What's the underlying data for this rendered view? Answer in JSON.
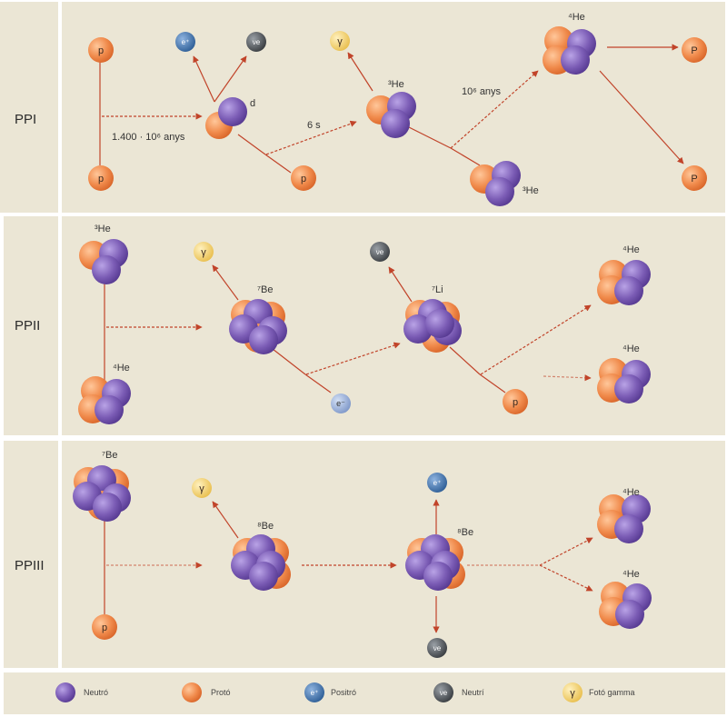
{
  "chains": {
    "ppi": {
      "label": "PPI",
      "p1": "p",
      "p2": "p",
      "p3": "p",
      "time1": "1.400 · 10⁶ anys",
      "time2": "6 s",
      "time3": "10⁶ anys",
      "d": "d",
      "he3_a": "³He",
      "he3_b": "³He",
      "he4": "⁴He",
      "e_plus": "e⁺",
      "nu": "νe",
      "gamma": "γ",
      "p_out1": "P",
      "p_out2": "P"
    },
    "ppii": {
      "label": "PPII",
      "he3": "³He",
      "he4_in": "⁴He",
      "be7": "⁷Be",
      "li7": "⁷Li",
      "gamma": "γ",
      "nu": "νe",
      "e_minus": "e⁻",
      "p": "p",
      "he4_out1": "⁴He",
      "he4_out2": "⁴He"
    },
    "ppiii": {
      "label": "PPIII",
      "be7": "⁷Be",
      "p": "p",
      "b8": "⁸Be",
      "be8": "⁸Be",
      "gamma": "γ",
      "e_plus": "e⁺",
      "nu": "νe",
      "he4_out1": "⁴He",
      "he4_out2": "⁴He"
    }
  },
  "legend": {
    "neutron": "Neutró",
    "proton": "Protó",
    "positron": "Positró",
    "neutrino": "Neutrí",
    "photon": "Fotó gamma"
  },
  "colors": {
    "proton": "#f08a4b",
    "neutron": "#7b5cb5",
    "positron": "#3d6fa6",
    "neutrino": "#4f5357",
    "photon": "#f2d06b",
    "electron": "#8fa8d6",
    "arrow": "#c1442a",
    "panel": "#ebe6d5"
  }
}
